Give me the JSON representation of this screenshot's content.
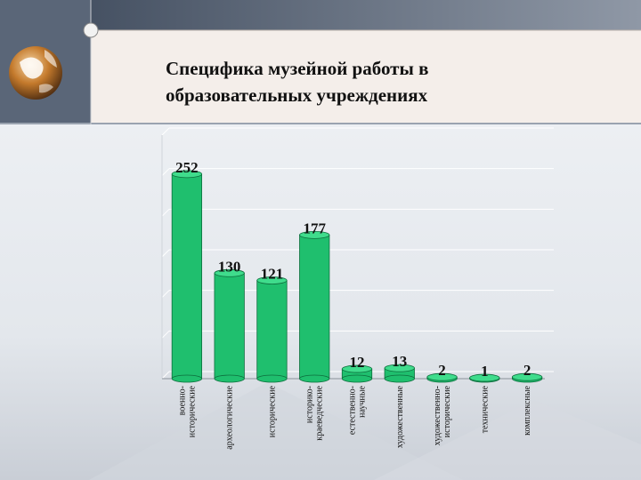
{
  "slide": {
    "title_line1": "Специфика музейной работы в",
    "title_line2": "образовательных учреждениях"
  },
  "colors": {
    "bar": "#1fbf6e",
    "bar_top": "#3fdc8c",
    "header_band": "#f4eeea",
    "accent": "#2e3b4e"
  },
  "chart_data": {
    "type": "bar",
    "categories": [
      [
        "военно-",
        "исторические"
      ],
      [
        "археологические"
      ],
      [
        "исторические"
      ],
      [
        "историко-",
        "краеведческие"
      ],
      [
        "естественно-",
        "научные"
      ],
      [
        "художественные"
      ],
      [
        "художественно-",
        "исторические"
      ],
      [
        "технические"
      ],
      [
        "комплексные"
      ]
    ],
    "values": [
      252,
      130,
      121,
      177,
      12,
      13,
      2,
      1,
      2
    ],
    "ylim": [
      0,
      300
    ],
    "grid": true,
    "title": "",
    "xlabel": "",
    "ylabel": ""
  }
}
